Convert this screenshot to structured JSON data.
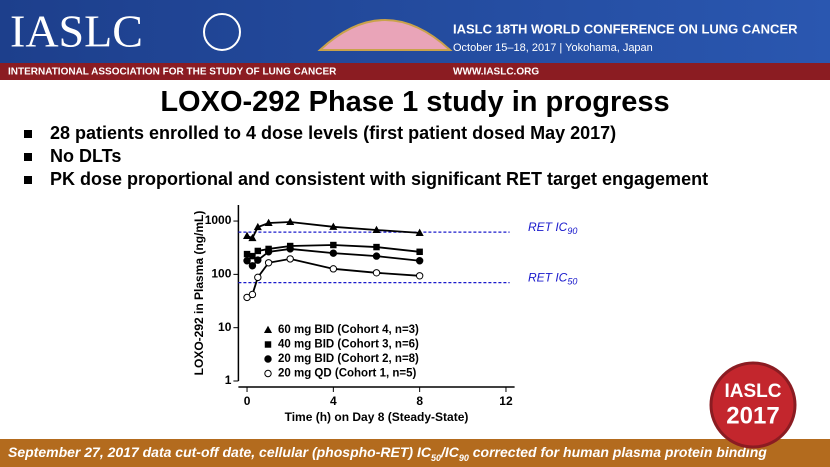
{
  "header": {
    "logo": "IASLC",
    "association": "INTERNATIONAL ASSOCIATION FOR THE STUDY OF LUNG CANCER",
    "conference": "IASLC 18TH WORLD CONFERENCE ON LUNG CANCER",
    "dates": "October 15–18, 2017 | Yokohama, Japan",
    "website": "WWW.IASLC.ORG"
  },
  "slide": {
    "title": "LOXO-292 Phase 1 study in progress",
    "bullets": [
      "28 patients enrolled to 4 dose levels (first patient dosed May 2017)",
      "No DLTs",
      "PK dose proportional and consistent with significant RET target engagement"
    ]
  },
  "chart_data": {
    "type": "line",
    "x_label": "Time (h) on Day 8 (Steady-State)",
    "y_label": "LOXO-292 in Plasma (ng/mL)",
    "x": [
      0,
      0.25,
      0.5,
      1,
      2,
      4,
      6,
      8
    ],
    "xlim": [
      -0.4,
      12.4
    ],
    "xticks": [
      0,
      4,
      8,
      12
    ],
    "ylim": [
      1,
      2000
    ],
    "yticks": [
      1,
      10,
      100,
      1000
    ],
    "log_y": true,
    "legend": "lower left",
    "series": [
      {
        "name": "60 mg BID (Cohort 4, n=3)",
        "color": "#000000",
        "marker": "triangle",
        "values": [
          525,
          480,
          770,
          920,
          960,
          780,
          680,
          600
        ]
      },
      {
        "name": "40 mg BID (Cohort 3, n=6)",
        "color": "#000000",
        "marker": "square",
        "values": [
          240,
          220,
          275,
          300,
          340,
          355,
          325,
          265
        ]
      },
      {
        "name": "20 mg BID (Cohort 2, n=8)",
        "color": "#000000",
        "marker": "circle",
        "values": [
          180,
          145,
          185,
          265,
          300,
          250,
          220,
          180
        ]
      },
      {
        "name": "20 mg QD (Cohort 1, n=5)",
        "color": "#000000",
        "marker": "open-circle",
        "values": [
          37,
          42,
          88,
          165,
          195,
          127,
          107,
          94
        ]
      }
    ],
    "reference_lines": [
      {
        "label": "RET IC",
        "sub": "90",
        "value": 620,
        "color": "#1a1acc"
      },
      {
        "label": "RET IC",
        "sub": "50",
        "value": 70,
        "color": "#1a1acc"
      }
    ]
  },
  "footer": {
    "parts": [
      "September 27, 2017 data cut-off date, cellular (phospho-RET) IC",
      "50",
      "/IC",
      "90",
      " corrected for human plasma protein binding"
    ]
  },
  "badge": {
    "name": "IASLC",
    "year": "2017"
  }
}
